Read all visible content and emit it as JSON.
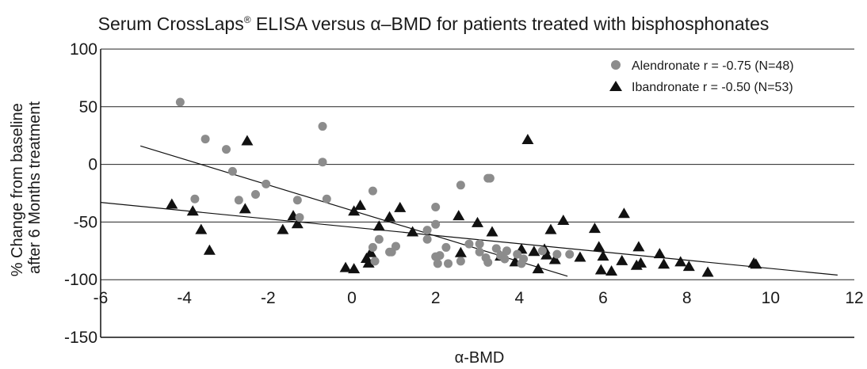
{
  "chart_data": {
    "type": "scatter",
    "title_main": "Serum CrossLaps",
    "title_sup": "®",
    "title_rest": " ELISA versus α–BMD for patients treated with bisphosphonates",
    "xlabel": "α-BMD",
    "ylabel_line1": "% Change from baseline",
    "ylabel_line2": "after 6 Months treatment",
    "xlim": [
      -6,
      12
    ],
    "ylim": [
      -150,
      100
    ],
    "x_ticks": [
      "-6",
      "-4",
      "-2",
      "0",
      "2",
      "4",
      "6",
      "8",
      "10",
      "12"
    ],
    "y_ticks": [
      "100",
      "50",
      "0",
      "-50",
      "-100",
      "-150"
    ],
    "grid": "horizontal",
    "legend_position": "top-right",
    "colors": {
      "alendronate": "#8c8c8c",
      "ibandronate": "#111111",
      "line": "#111111"
    },
    "series": [
      {
        "name": "Alendronate r = -0.75 (N=48)",
        "marker": "circle",
        "points": [
          [
            -4.1,
            54
          ],
          [
            -3.5,
            22
          ],
          [
            -3.0,
            13
          ],
          [
            -2.85,
            -6
          ],
          [
            -3.75,
            -30
          ],
          [
            -2.7,
            -31
          ],
          [
            -2.3,
            -26
          ],
          [
            -2.05,
            -17
          ],
          [
            -1.3,
            -31
          ],
          [
            -1.25,
            -46
          ],
          [
            -0.7,
            33
          ],
          [
            -0.7,
            2
          ],
          [
            -0.6,
            -30
          ],
          [
            0.5,
            -23
          ],
          [
            0.5,
            -72
          ],
          [
            0.55,
            -84
          ],
          [
            0.65,
            -65
          ],
          [
            0.9,
            -76
          ],
          [
            0.95,
            -76
          ],
          [
            1.05,
            -71
          ],
          [
            1.8,
            -57
          ],
          [
            1.8,
            -65
          ],
          [
            2.0,
            -37
          ],
          [
            2.0,
            -52
          ],
          [
            2.0,
            -80
          ],
          [
            2.05,
            -86
          ],
          [
            2.1,
            -79
          ],
          [
            2.25,
            -72
          ],
          [
            2.3,
            -86
          ],
          [
            2.6,
            -18
          ],
          [
            2.6,
            -84
          ],
          [
            2.8,
            -69
          ],
          [
            3.05,
            -69
          ],
          [
            3.05,
            -76
          ],
          [
            3.2,
            -81
          ],
          [
            3.25,
            -85
          ],
          [
            3.25,
            -12
          ],
          [
            3.3,
            -12
          ],
          [
            3.45,
            -73
          ],
          [
            3.55,
            -79
          ],
          [
            3.65,
            -82
          ],
          [
            3.7,
            -75
          ],
          [
            3.95,
            -78
          ],
          [
            4.05,
            -86
          ],
          [
            4.1,
            -82
          ],
          [
            4.55,
            -75
          ],
          [
            4.9,
            -78
          ],
          [
            5.2,
            -78
          ]
        ]
      },
      {
        "name": "Ibandronate r = -0.50 (N=53)",
        "marker": "triangle",
        "points": [
          [
            -4.3,
            -35
          ],
          [
            -3.8,
            -41
          ],
          [
            -3.6,
            -57
          ],
          [
            -3.4,
            -75
          ],
          [
            -2.5,
            20
          ],
          [
            -2.55,
            -39
          ],
          [
            -1.65,
            -57
          ],
          [
            -1.4,
            -45
          ],
          [
            -1.3,
            -52
          ],
          [
            -0.15,
            -90
          ],
          [
            0.05,
            -91
          ],
          [
            0.05,
            -41
          ],
          [
            0.2,
            -36
          ],
          [
            0.35,
            -82
          ],
          [
            0.4,
            -86
          ],
          [
            0.45,
            -77
          ],
          [
            0.65,
            -54
          ],
          [
            0.9,
            -46
          ],
          [
            1.15,
            -38
          ],
          [
            1.45,
            -59
          ],
          [
            2.55,
            -45
          ],
          [
            2.6,
            -77
          ],
          [
            3.0,
            -51
          ],
          [
            3.35,
            -59
          ],
          [
            3.55,
            -80
          ],
          [
            3.9,
            -85
          ],
          [
            4.05,
            -74
          ],
          [
            4.2,
            21
          ],
          [
            4.35,
            -76
          ],
          [
            4.45,
            -91
          ],
          [
            4.6,
            -74
          ],
          [
            4.65,
            -79
          ],
          [
            4.75,
            -57
          ],
          [
            4.85,
            -83
          ],
          [
            5.05,
            -49
          ],
          [
            5.45,
            -81
          ],
          [
            5.8,
            -56
          ],
          [
            5.9,
            -72
          ],
          [
            5.95,
            -92
          ],
          [
            6.0,
            -80
          ],
          [
            6.2,
            -93
          ],
          [
            6.45,
            -84
          ],
          [
            6.5,
            -43
          ],
          [
            6.8,
            -88
          ],
          [
            6.85,
            -72
          ],
          [
            6.9,
            -86
          ],
          [
            7.35,
            -78
          ],
          [
            7.45,
            -87
          ],
          [
            7.85,
            -85
          ],
          [
            8.05,
            -89
          ],
          [
            8.5,
            -94
          ],
          [
            9.6,
            -86
          ],
          [
            9.65,
            -87
          ]
        ]
      }
    ],
    "regression_lines": [
      {
        "series": "Alendronate",
        "x": [
          -5.05,
          5.15
        ],
        "y": [
          16,
          -97
        ]
      },
      {
        "series": "Ibandronate",
        "x": [
          -6.0,
          11.6
        ],
        "y": [
          -33,
          -96
        ]
      }
    ]
  }
}
